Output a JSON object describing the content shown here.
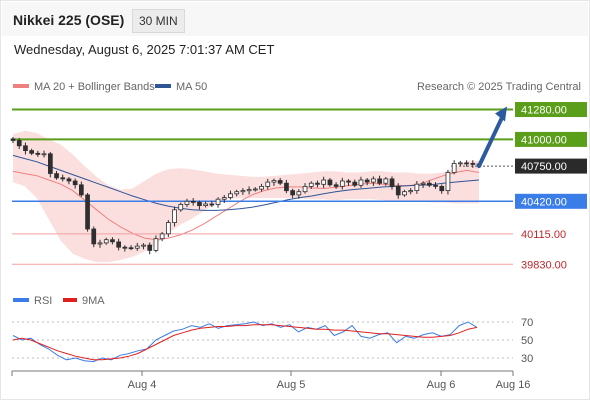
{
  "header": {
    "title": "Nikkei 225 (OSE)",
    "timeframe": "30 MIN",
    "datetime": "Wednesday, August 6, 2025 7:01:37 AM CET"
  },
  "legend": {
    "ma20": "MA 20 + Bollinger Bands",
    "ma50": "MA 50",
    "credit": "Research © 2025 Trading Central",
    "rsi": "RSI",
    "rsi_ma": "9MA"
  },
  "colors": {
    "ma20": "#f08080",
    "ma50": "#2f5597",
    "bollinger_fill": "#fbdada",
    "candle": "#2f2f2f",
    "resistance": "#5a9e1a",
    "support": "#3b7de8",
    "support_low": "#f2a0a0",
    "target_arrow": "#2c5aa0",
    "rsi": "#3b7de8",
    "rsi_ma": "#e02020"
  },
  "chart_data": [
    {
      "type": "candlestick",
      "title": "Nikkei 225 (OSE)",
      "ylim": [
        39720,
        41360
      ],
      "x_tick_labels": [
        "Aug 4",
        "Aug 5",
        "Aug 6",
        "Aug 16"
      ],
      "levels": [
        {
          "label": "41280.00",
          "value": 41280,
          "kind": "resistance"
        },
        {
          "label": "41000.00",
          "value": 41000,
          "kind": "resistance"
        },
        {
          "label": "40750.00",
          "value": 40750,
          "kind": "last"
        },
        {
          "label": "40420.00",
          "value": 40420,
          "kind": "pivot"
        },
        {
          "label": "40115.00",
          "value": 40115,
          "kind": "support"
        },
        {
          "label": "39830.00",
          "value": 39830,
          "kind": "support"
        }
      ],
      "close": [
        40990,
        40940,
        40895,
        40870,
        40860,
        40865,
        40680,
        40640,
        40630,
        40610,
        40575,
        40480,
        40160,
        40020,
        40030,
        40060,
        40040,
        39990,
        39985,
        39980,
        40000,
        40010,
        39960,
        40070,
        40115,
        40220,
        40340,
        40390,
        40420,
        40410,
        40380,
        40395,
        40390,
        40440,
        40455,
        40490,
        40510,
        40520,
        40530,
        40535,
        40560,
        40600,
        40615,
        40590,
        40520,
        40480,
        40510,
        40560,
        40590,
        40580,
        40620,
        40575,
        40560,
        40610,
        40600,
        40570,
        40620,
        40600,
        40630,
        40590,
        40630,
        40560,
        40480,
        40510,
        40520,
        40580,
        40590,
        40570,
        40560,
        40520,
        40690,
        40775,
        40780,
        40775,
        40770,
        40750
      ],
      "ma20": [
        40700,
        40680,
        40660,
        40620,
        40580,
        40520,
        40430,
        40340,
        40250,
        40180,
        40120,
        40075,
        40060,
        40075,
        40105,
        40150,
        40210,
        40280,
        40350,
        40420,
        40480,
        40520,
        40545,
        40555,
        40555,
        40545,
        40540,
        40550,
        40565,
        40580,
        40590,
        40580,
        40570,
        40565,
        40580,
        40620,
        40660,
        40690,
        40710,
        40690
      ],
      "ma50": [
        40850,
        40820,
        40790,
        40750,
        40710,
        40670,
        40630,
        40590,
        40550,
        40510,
        40470,
        40435,
        40400,
        40375,
        40355,
        40340,
        40335,
        40335,
        40340,
        40350,
        40365,
        40385,
        40410,
        40435,
        40455,
        40470,
        40490,
        40510,
        40525,
        40535,
        40545,
        40555,
        40560,
        40565,
        40570,
        40575,
        40590,
        40600,
        40610,
        40620
      ],
      "bb_upper": [
        41050,
        41080,
        41060,
        41000,
        40950,
        40860,
        40750,
        40650,
        40570,
        40530,
        40540,
        40610,
        40680,
        40720,
        40730,
        40720,
        40700,
        40680,
        40670,
        40660,
        40650,
        40650,
        40660,
        40670,
        40680,
        40690,
        40700,
        40700,
        40690,
        40690,
        40700,
        40700,
        40690,
        40690,
        40680,
        40680,
        40690,
        40730,
        40800,
        40800
      ],
      "bb_lower": [
        40600,
        40560,
        40450,
        40250,
        40050,
        39930,
        39880,
        39850,
        39850,
        39870,
        39900,
        39950,
        40020,
        40120,
        40200,
        40260,
        40330,
        40400,
        40440,
        40450,
        40450,
        40450,
        40450,
        40450,
        40450,
        40440,
        40440,
        40430,
        40440,
        40440,
        40440,
        40430,
        40420,
        40420,
        40420,
        40410,
        40410,
        40400,
        40400,
        40400
      ]
    },
    {
      "type": "line",
      "title": "RSI",
      "ylim": [
        20,
        80
      ],
      "y_tick_labels": [
        "70",
        "50",
        "30"
      ],
      "series": [
        {
          "name": "RSI",
          "values": [
            55,
            50,
            52,
            45,
            40,
            33,
            28,
            30,
            27,
            26,
            30,
            28,
            33,
            35,
            38,
            40,
            50,
            55,
            60,
            62,
            66,
            64,
            68,
            63,
            66,
            67,
            68,
            70,
            66,
            68,
            64,
            67,
            59,
            64,
            62,
            66,
            55,
            59,
            66,
            54,
            52,
            56,
            58,
            47,
            54,
            52,
            56,
            58,
            54,
            56,
            66,
            70,
            64
          ]
        },
        {
          "name": "9MA",
          "values": [
            50,
            52,
            50,
            46,
            42,
            38,
            35,
            32,
            30,
            28,
            28,
            29,
            30,
            32,
            35,
            40,
            45,
            50,
            55,
            58,
            61,
            63,
            64,
            65,
            65,
            66,
            66,
            67,
            67,
            67,
            66,
            65,
            64,
            63,
            62,
            62,
            61,
            61,
            60,
            59,
            58,
            57,
            57,
            56,
            55,
            54,
            53,
            53,
            54,
            55,
            58,
            62,
            64
          ]
        }
      ]
    }
  ]
}
